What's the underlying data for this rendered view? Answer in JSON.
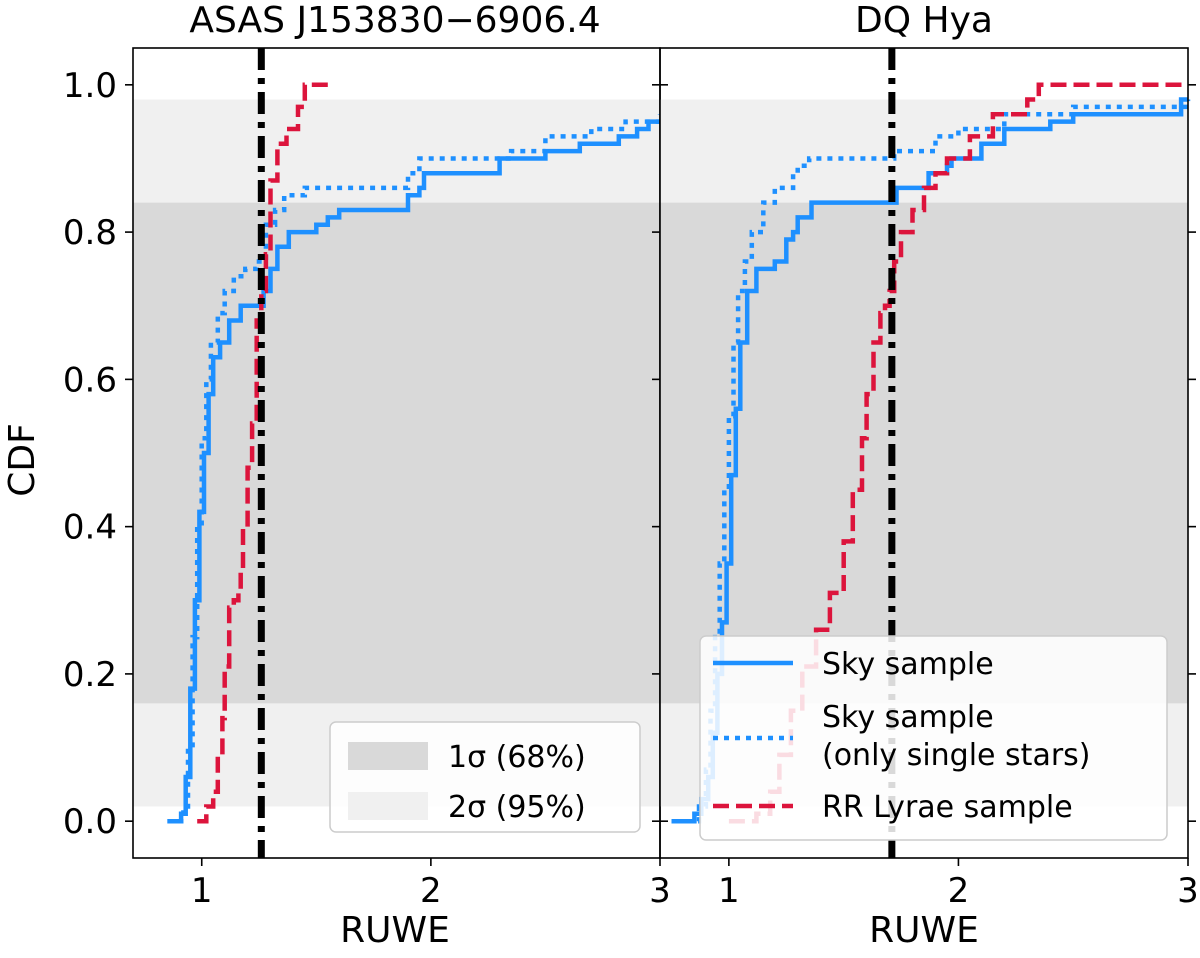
{
  "chart_data": [
    {
      "type": "line",
      "title": "ASAS J153830−6906.4",
      "xlabel": "RUWE",
      "ylabel": "CDF",
      "xlim": [
        0.7,
        3.0
      ],
      "ylim": [
        -0.05,
        1.05
      ],
      "xticks": [
        1,
        2,
        3
      ],
      "yticks": [
        "0.0",
        "0.2",
        "0.4",
        "0.6",
        "0.8",
        "1.0"
      ],
      "vline": 1.26,
      "bands": [
        {
          "name": "2σ (95%)",
          "range": [
            0.02,
            0.98
          ],
          "color": "#f0f0f0"
        },
        {
          "name": "1σ (68%)",
          "range": [
            0.16,
            0.84
          ],
          "color": "#d9d9d9"
        }
      ],
      "legend": {
        "placement": "lower right",
        "entries": [
          {
            "label": "1σ (68%)",
            "swatch": "#d9d9d9"
          },
          {
            "label": "2σ (95%)",
            "swatch": "#f0f0f0"
          }
        ]
      },
      "series": [
        {
          "style": "solid",
          "color": "#1e90ff",
          "points": [
            [
              0.85,
              0.0
            ],
            [
              0.89,
              0.0
            ],
            [
              0.91,
              0.01
            ],
            [
              0.93,
              0.06
            ],
            [
              0.95,
              0.18
            ],
            [
              0.97,
              0.3
            ],
            [
              0.99,
              0.42
            ],
            [
              1.01,
              0.5
            ],
            [
              1.03,
              0.58
            ],
            [
              1.05,
              0.63
            ],
            [
              1.08,
              0.65
            ],
            [
              1.12,
              0.68
            ],
            [
              1.17,
              0.7
            ],
            [
              1.26,
              0.7
            ],
            [
              1.27,
              0.72
            ],
            [
              1.3,
              0.75
            ],
            [
              1.33,
              0.78
            ],
            [
              1.38,
              0.8
            ],
            [
              1.45,
              0.8
            ],
            [
              1.5,
              0.81
            ],
            [
              1.55,
              0.82
            ],
            [
              1.6,
              0.83
            ],
            [
              1.85,
              0.83
            ],
            [
              1.9,
              0.85
            ],
            [
              1.95,
              0.86
            ],
            [
              1.97,
              0.88
            ],
            [
              2.2,
              0.88
            ],
            [
              2.3,
              0.9
            ],
            [
              2.5,
              0.91
            ],
            [
              2.65,
              0.92
            ],
            [
              2.82,
              0.93
            ],
            [
              2.9,
              0.94
            ],
            [
              2.95,
              0.95
            ],
            [
              3.0,
              0.95
            ]
          ]
        },
        {
          "style": "dotted",
          "color": "#1e90ff",
          "points": [
            [
              0.85,
              0.0
            ],
            [
              0.9,
              0.0
            ],
            [
              0.92,
              0.02
            ],
            [
              0.94,
              0.1
            ],
            [
              0.96,
              0.25
            ],
            [
              0.98,
              0.4
            ],
            [
              1.0,
              0.52
            ],
            [
              1.02,
              0.6
            ],
            [
              1.04,
              0.65
            ],
            [
              1.07,
              0.69
            ],
            [
              1.1,
              0.72
            ],
            [
              1.14,
              0.74
            ],
            [
              1.19,
              0.75
            ],
            [
              1.24,
              0.76
            ],
            [
              1.27,
              0.76
            ],
            [
              1.28,
              0.81
            ],
            [
              1.32,
              0.83
            ],
            [
              1.36,
              0.85
            ],
            [
              1.45,
              0.86
            ],
            [
              1.88,
              0.86
            ],
            [
              1.9,
              0.88
            ],
            [
              1.95,
              0.9
            ],
            [
              2.2,
              0.9
            ],
            [
              2.35,
              0.91
            ],
            [
              2.5,
              0.93
            ],
            [
              2.7,
              0.94
            ],
            [
              2.85,
              0.95
            ],
            [
              3.0,
              0.96
            ]
          ]
        },
        {
          "name": "",
          "style": "dashed",
          "color": "#dc143c",
          "points": [
            [
              0.98,
              0.0
            ],
            [
              1.0,
              0.0
            ],
            [
              1.02,
              0.02
            ],
            [
              1.05,
              0.04
            ],
            [
              1.07,
              0.09
            ],
            [
              1.09,
              0.14
            ],
            [
              1.1,
              0.21
            ],
            [
              1.12,
              0.29
            ],
            [
              1.14,
              0.3
            ],
            [
              1.16,
              0.31
            ],
            [
              1.17,
              0.34
            ],
            [
              1.18,
              0.4
            ],
            [
              1.2,
              0.48
            ],
            [
              1.22,
              0.54
            ],
            [
              1.24,
              0.68
            ],
            [
              1.26,
              0.72
            ],
            [
              1.27,
              0.72
            ],
            [
              1.28,
              0.77
            ],
            [
              1.3,
              0.87
            ],
            [
              1.33,
              0.92
            ],
            [
              1.37,
              0.94
            ],
            [
              1.4,
              0.94
            ],
            [
              1.42,
              0.97
            ],
            [
              1.45,
              1.0
            ],
            [
              1.57,
              1.0
            ]
          ]
        }
      ]
    },
    {
      "type": "line",
      "title": "DQ Hya",
      "xlabel": "RUWE",
      "ylabel": "",
      "xlim": [
        0.7,
        3.0
      ],
      "ylim": [
        -0.05,
        1.05
      ],
      "xticks": [
        1,
        2,
        3
      ],
      "vline": 1.71,
      "bands": [
        {
          "name": "2σ (95%)",
          "range": [
            0.02,
            0.98
          ],
          "color": "#f0f0f0"
        },
        {
          "name": "1σ (68%)",
          "range": [
            0.16,
            0.84
          ],
          "color": "#d9d9d9"
        }
      ],
      "legend": {
        "placement": "lower right",
        "entries": [
          {
            "label": "Sky sample",
            "style": "solid",
            "color": "#1e90ff"
          },
          {
            "label": "Sky sample",
            "label2": "(only single stars)",
            "style": "dotted",
            "color": "#1e90ff"
          },
          {
            "label": "RR Lyrae sample",
            "style": "dashed",
            "color": "#dc143c"
          }
        ]
      },
      "series": [
        {
          "name": "Sky sample",
          "style": "solid",
          "color": "#1e90ff",
          "points": [
            [
              0.75,
              0.0
            ],
            [
              0.82,
              0.0
            ],
            [
              0.85,
              0.01
            ],
            [
              0.88,
              0.03
            ],
            [
              0.91,
              0.06
            ],
            [
              0.93,
              0.12
            ],
            [
              0.95,
              0.2
            ],
            [
              0.97,
              0.27
            ],
            [
              0.99,
              0.35
            ],
            [
              1.01,
              0.47
            ],
            [
              1.03,
              0.56
            ],
            [
              1.05,
              0.65
            ],
            [
              1.08,
              0.72
            ],
            [
              1.12,
              0.75
            ],
            [
              1.2,
              0.76
            ],
            [
              1.25,
              0.79
            ],
            [
              1.28,
              0.8
            ],
            [
              1.3,
              0.82
            ],
            [
              1.36,
              0.84
            ],
            [
              1.72,
              0.84
            ],
            [
              1.73,
              0.86
            ],
            [
              1.85,
              0.86
            ],
            [
              1.87,
              0.88
            ],
            [
              1.95,
              0.89
            ],
            [
              1.97,
              0.9
            ],
            [
              2.1,
              0.92
            ],
            [
              2.2,
              0.94
            ],
            [
              2.4,
              0.95
            ],
            [
              2.5,
              0.96
            ],
            [
              2.95,
              0.96
            ],
            [
              2.97,
              0.98
            ],
            [
              3.0,
              0.98
            ]
          ]
        },
        {
          "name": "Sky sample (only single stars)",
          "style": "dotted",
          "color": "#1e90ff",
          "points": [
            [
              0.77,
              0.0
            ],
            [
              0.84,
              0.0
            ],
            [
              0.87,
              0.02
            ],
            [
              0.9,
              0.07
            ],
            [
              0.92,
              0.15
            ],
            [
              0.94,
              0.25
            ],
            [
              0.96,
              0.35
            ],
            [
              0.98,
              0.45
            ],
            [
              1.0,
              0.55
            ],
            [
              1.02,
              0.65
            ],
            [
              1.04,
              0.72
            ],
            [
              1.07,
              0.76
            ],
            [
              1.1,
              0.8
            ],
            [
              1.15,
              0.84
            ],
            [
              1.2,
              0.86
            ],
            [
              1.28,
              0.88
            ],
            [
              1.3,
              0.89
            ],
            [
              1.35,
              0.9
            ],
            [
              1.7,
              0.9
            ],
            [
              1.72,
              0.91
            ],
            [
              1.9,
              0.93
            ],
            [
              2.0,
              0.94
            ],
            [
              2.2,
              0.96
            ],
            [
              2.5,
              0.97
            ],
            [
              3.0,
              0.98
            ]
          ]
        },
        {
          "name": "RR Lyrae sample",
          "style": "dashed",
          "color": "#dc143c",
          "points": [
            [
              1.0,
              0.0
            ],
            [
              1.08,
              0.0
            ],
            [
              1.12,
              0.01
            ],
            [
              1.18,
              0.04
            ],
            [
              1.22,
              0.09
            ],
            [
              1.27,
              0.15
            ],
            [
              1.32,
              0.21
            ],
            [
              1.38,
              0.26
            ],
            [
              1.44,
              0.31
            ],
            [
              1.5,
              0.38
            ],
            [
              1.54,
              0.45
            ],
            [
              1.58,
              0.52
            ],
            [
              1.6,
              0.58
            ],
            [
              1.63,
              0.65
            ],
            [
              1.66,
              0.69
            ],
            [
              1.68,
              0.7
            ],
            [
              1.7,
              0.72
            ],
            [
              1.72,
              0.76
            ],
            [
              1.75,
              0.8
            ],
            [
              1.8,
              0.83
            ],
            [
              1.85,
              0.86
            ],
            [
              1.9,
              0.88
            ],
            [
              1.95,
              0.9
            ],
            [
              2.05,
              0.93
            ],
            [
              2.15,
              0.96
            ],
            [
              2.3,
              0.98
            ],
            [
              2.35,
              1.0
            ],
            [
              3.0,
              1.0
            ]
          ]
        }
      ]
    }
  ]
}
